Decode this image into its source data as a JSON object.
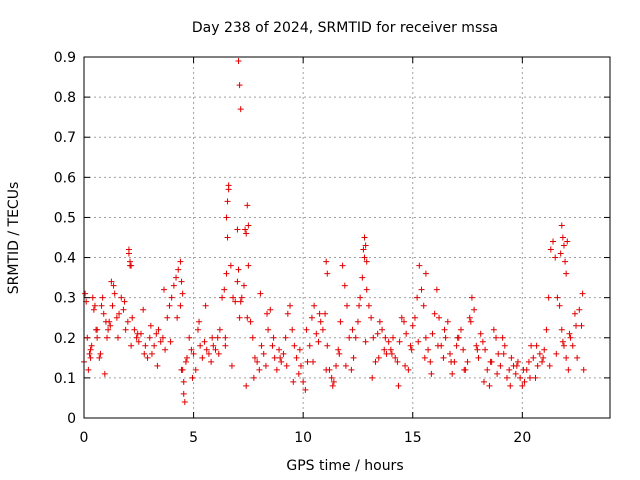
{
  "chart_data": {
    "type": "scatter",
    "title": "Day 238 of 2024, SRMTID for receiver mssa",
    "xlabel": "GPS time / hours",
    "ylabel": "SRMTID / TECUs",
    "xlim": [
      0,
      24
    ],
    "ylim": [
      0,
      0.9
    ],
    "xticks": [
      0,
      5,
      10,
      15,
      20
    ],
    "xtick_labels": [
      "0",
      "5",
      "10",
      "15",
      "20"
    ],
    "yticks": [
      0,
      0.1,
      0.2,
      0.3,
      0.4,
      0.5,
      0.6,
      0.7,
      0.8,
      0.9
    ],
    "ytick_labels": [
      "0",
      "0.1",
      "0.2",
      "0.3",
      "0.4",
      "0.5",
      "0.6",
      "0.7",
      "0.8",
      "0.9"
    ],
    "grid": true,
    "marker": "+",
    "marker_color": "#e00000",
    "series": [
      {
        "name": "SRMTID",
        "x": [
          0.0,
          0.1,
          0.15,
          0.2,
          0.25,
          0.3,
          0.35,
          0.4,
          0.45,
          0.5,
          0.55,
          0.6,
          0.7,
          0.75,
          0.8,
          0.85,
          0.9,
          1.0,
          1.05,
          1.1,
          1.15,
          1.2,
          1.3,
          1.35,
          1.4,
          1.5,
          1.6,
          1.7,
          1.8,
          1.9,
          2.0,
          2.05,
          2.1,
          2.2,
          2.3,
          2.4,
          2.5,
          2.6,
          2.7,
          2.8,
          2.9,
          3.0,
          3.1,
          3.2,
          3.3,
          3.4,
          3.5,
          3.6,
          3.7,
          3.8,
          3.9,
          4.0,
          4.1,
          4.2,
          4.3,
          4.4,
          4.5,
          4.55,
          4.6,
          4.7,
          4.8,
          4.9,
          5.0,
          5.1,
          5.2,
          5.3,
          5.4,
          5.5,
          5.6,
          5.7,
          5.8,
          5.9,
          6.0,
          6.1,
          6.2,
          6.3,
          6.4,
          6.5,
          6.55,
          6.6,
          6.7,
          6.8,
          6.9,
          7.0,
          7.05,
          7.1,
          7.2,
          7.3,
          7.35,
          7.4,
          7.5,
          7.6,
          7.7,
          7.8,
          7.9,
          8.0,
          8.1,
          8.2,
          8.3,
          8.4,
          8.5,
          8.6,
          8.7,
          8.8,
          8.9,
          9.0,
          9.1,
          9.2,
          9.3,
          9.4,
          9.5,
          9.6,
          9.7,
          9.8,
          9.9,
          10.0,
          10.1,
          10.2,
          10.3,
          10.4,
          10.5,
          10.6,
          10.7,
          10.8,
          10.9,
          11.0,
          11.1,
          11.2,
          11.3,
          11.4,
          11.5,
          11.6,
          11.7,
          11.8,
          11.9,
          12.0,
          12.1,
          12.2,
          12.3,
          12.4,
          12.5,
          12.6,
          12.7,
          12.8,
          12.9,
          13.0,
          13.1,
          13.2,
          13.3,
          13.4,
          13.5,
          13.6,
          13.7,
          13.8,
          13.9,
          14.0,
          14.1,
          14.2,
          14.3,
          14.4,
          14.5,
          14.6,
          14.7,
          14.8,
          14.9,
          15.0,
          15.1,
          15.2,
          15.3,
          15.4,
          15.5,
          15.6,
          15.7,
          15.8,
          15.9,
          16.0,
          16.1,
          16.2,
          16.3,
          16.4,
          16.5,
          16.6,
          16.7,
          16.8,
          16.9,
          17.0,
          17.1,
          17.2,
          17.3,
          17.4,
          17.5,
          17.6,
          17.7,
          17.8,
          17.9,
          18.0,
          18.1,
          18.2,
          18.3,
          18.4,
          18.5,
          18.6,
          18.7,
          18.8,
          18.9,
          19.0,
          19.1,
          19.2,
          19.3,
          19.4,
          19.5,
          19.6,
          19.7,
          19.8,
          19.9,
          20.0,
          20.1,
          20.2,
          20.3,
          20.4,
          20.5,
          20.6,
          20.7,
          20.8,
          20.9,
          21.0,
          21.1,
          21.2,
          21.3,
          21.4,
          21.5,
          21.6,
          21.7,
          21.8,
          21.9,
          22.0,
          22.1,
          22.2,
          22.3,
          22.4,
          22.5,
          22.6,
          22.7,
          22.8,
          0.05,
          0.3,
          0.6,
          0.95,
          1.25,
          1.55,
          1.85,
          2.15,
          2.45,
          2.75,
          3.05,
          3.35,
          3.65,
          3.95,
          4.25,
          4.45,
          4.65,
          4.95,
          5.25,
          5.55,
          5.85,
          6.15,
          6.45,
          6.75,
          7.15,
          7.45,
          7.75,
          8.05,
          8.35,
          8.65,
          8.95,
          9.25,
          9.55,
          9.85,
          10.15,
          10.45,
          10.75,
          11.05,
          11.35,
          11.65,
          11.95,
          12.25,
          12.55,
          12.85,
          13.15,
          13.45,
          13.75,
          14.05,
          14.35,
          14.65,
          14.95,
          15.25,
          15.55,
          15.85,
          16.15,
          16.45,
          16.75,
          17.05,
          17.35,
          17.65,
          17.95,
          18.25,
          18.55,
          18.85,
          19.15,
          19.45,
          19.75,
          20.05,
          20.35,
          20.65,
          20.95,
          21.25,
          21.55,
          21.85,
          22.15,
          22.45,
          22.75,
          6.45,
          6.5,
          6.55,
          6.6,
          7.0,
          7.05,
          7.1,
          7.15,
          7.4,
          7.45,
          7.5,
          12.75,
          12.8,
          12.85,
          12.9,
          15.6,
          21.75,
          21.8,
          21.85,
          21.9,
          21.95,
          22.0,
          22.05,
          2.05,
          2.1,
          2.15,
          4.4,
          4.45,
          4.5,
          4.55,
          11.05,
          11.1
        ],
        "y": [
          0.14,
          0.29,
          0.2,
          0.12,
          0.16,
          0.15,
          0.18,
          0.3,
          0.27,
          0.28,
          0.22,
          0.2,
          0.15,
          0.16,
          0.28,
          0.3,
          0.26,
          0.24,
          0.2,
          0.22,
          0.24,
          0.23,
          0.28,
          0.33,
          0.31,
          0.25,
          0.26,
          0.3,
          0.27,
          0.22,
          0.24,
          0.42,
          0.38,
          0.25,
          0.22,
          0.2,
          0.19,
          0.21,
          0.27,
          0.18,
          0.15,
          0.2,
          0.16,
          0.18,
          0.21,
          0.22,
          0.19,
          0.2,
          0.17,
          0.25,
          0.28,
          0.3,
          0.33,
          0.35,
          0.37,
          0.28,
          0.12,
          0.06,
          0.04,
          0.15,
          0.2,
          0.17,
          0.16,
          0.12,
          0.22,
          0.18,
          0.15,
          0.19,
          0.17,
          0.16,
          0.14,
          0.18,
          0.17,
          0.2,
          0.22,
          0.3,
          0.32,
          0.36,
          0.45,
          0.58,
          0.38,
          0.3,
          0.29,
          0.34,
          0.37,
          0.25,
          0.3,
          0.33,
          0.47,
          0.46,
          0.38,
          0.24,
          0.2,
          0.15,
          0.14,
          0.12,
          0.18,
          0.16,
          0.13,
          0.22,
          0.27,
          0.18,
          0.15,
          0.12,
          0.17,
          0.14,
          0.16,
          0.2,
          0.26,
          0.28,
          0.22,
          0.18,
          0.15,
          0.11,
          0.13,
          0.09,
          0.07,
          0.14,
          0.18,
          0.25,
          0.28,
          0.21,
          0.19,
          0.24,
          0.22,
          0.26,
          0.18,
          0.12,
          0.1,
          0.09,
          0.13,
          0.17,
          0.24,
          0.38,
          0.33,
          0.28,
          0.2,
          0.12,
          0.15,
          0.2,
          0.24,
          0.3,
          0.35,
          0.4,
          0.32,
          0.28,
          0.25,
          0.2,
          0.14,
          0.21,
          0.24,
          0.22,
          0.17,
          0.16,
          0.19,
          0.17,
          0.2,
          0.15,
          0.14,
          0.19,
          0.25,
          0.24,
          0.21,
          0.12,
          0.18,
          0.23,
          0.25,
          0.3,
          0.38,
          0.32,
          0.28,
          0.2,
          0.17,
          0.14,
          0.21,
          0.26,
          0.32,
          0.25,
          0.18,
          0.15,
          0.2,
          0.24,
          0.16,
          0.11,
          0.14,
          0.18,
          0.2,
          0.22,
          0.17,
          0.12,
          0.14,
          0.25,
          0.3,
          0.27,
          0.18,
          0.15,
          0.21,
          0.19,
          0.17,
          0.12,
          0.08,
          0.14,
          0.22,
          0.2,
          0.16,
          0.13,
          0.2,
          0.18,
          0.1,
          0.12,
          0.15,
          0.13,
          0.11,
          0.14,
          0.1,
          0.08,
          0.09,
          0.12,
          0.14,
          0.18,
          0.15,
          0.1,
          0.13,
          0.16,
          0.14,
          0.17,
          0.22,
          0.3,
          0.42,
          0.44,
          0.4,
          0.3,
          0.28,
          0.22,
          0.18,
          0.15,
          0.12,
          0.2,
          0.18,
          0.26,
          0.15,
          0.27,
          0.23,
          0.12,
          0.31,
          0.17,
          0.22,
          0.11,
          0.34,
          0.2,
          0.29,
          0.18,
          0.21,
          0.16,
          0.23,
          0.13,
          0.32,
          0.19,
          0.25,
          0.12,
          0.14,
          0.1,
          0.24,
          0.28,
          0.2,
          0.16,
          0.18,
          0.13,
          0.29,
          0.25,
          0.1,
          0.31,
          0.26,
          0.2,
          0.15,
          0.13,
          0.09,
          0.17,
          0.22,
          0.14,
          0.26,
          0.12,
          0.08,
          0.16,
          0.13,
          0.22,
          0.28,
          0.19,
          0.1,
          0.15,
          0.2,
          0.16,
          0.08,
          0.13,
          0.17,
          0.19,
          0.15,
          0.11,
          0.18,
          0.22,
          0.14,
          0.2,
          0.12,
          0.24,
          0.17,
          0.09,
          0.14,
          0.11,
          0.16,
          0.08,
          0.13,
          0.12,
          0.1,
          0.18,
          0.15,
          0.13,
          0.16,
          0.19,
          0.21,
          0.23,
          0.31,
          0.2,
          0.5,
          0.54,
          0.57,
          0.47,
          0.89,
          0.83,
          0.77,
          0.08,
          0.53,
          0.48,
          0.42,
          0.45,
          0.43,
          0.39,
          0.36,
          0.41,
          0.48,
          0.45,
          0.43,
          0.39,
          0.36,
          0.44,
          0.41,
          0.39,
          0.38,
          0.39,
          0.34,
          0.31,
          0.09,
          0.39,
          0.36
        ],
        "color": "#e00000"
      }
    ]
  }
}
